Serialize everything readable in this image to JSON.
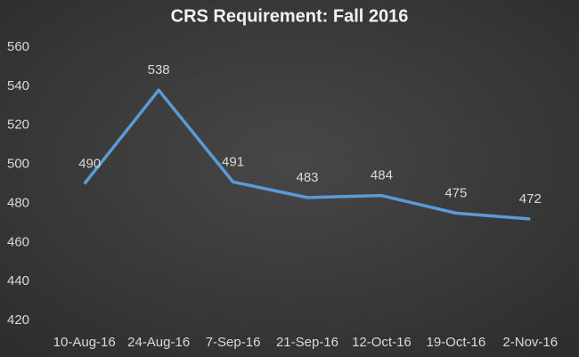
{
  "chart_data": {
    "type": "line",
    "title": "CRS Requirement: Fall 2016",
    "categories": [
      "10-Aug-16",
      "24-Aug-16",
      "7-Sep-16",
      "21-Sep-16",
      "12-Oct-16",
      "19-Oct-16",
      "2-Nov-16"
    ],
    "values": [
      490,
      538,
      491,
      483,
      484,
      475,
      472
    ],
    "color": "#5b9bd5",
    "ylim": [
      420,
      560
    ],
    "yticks": [
      420,
      440,
      460,
      480,
      500,
      520,
      540,
      560
    ],
    "grid": false
  }
}
